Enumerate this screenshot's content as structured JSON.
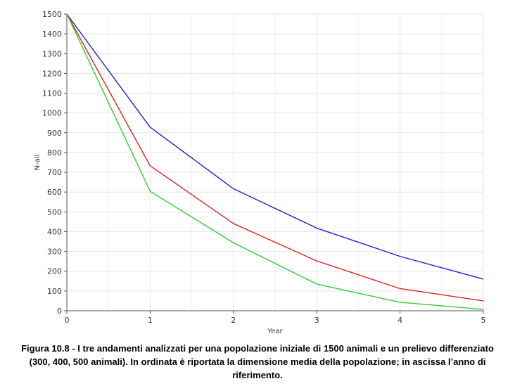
{
  "caption": "Figura 10.8 - I tre andamenti analizzati per una popolazione iniziale di 1500 animali e un prelievo differenziato (300, 400, 500 animali). In ordinata è riportata la dimensione media della popolazione; in ascissa l’anno di riferimento.",
  "chart_data": {
    "type": "line",
    "title": "",
    "xlabel": "Year",
    "ylabel": "N-all",
    "x": [
      0,
      1,
      2,
      3,
      4,
      5
    ],
    "xlim": [
      0,
      5
    ],
    "ylim": [
      0,
      1500
    ],
    "x_ticks": [
      "0",
      "1",
      "2",
      "3",
      "4",
      "5"
    ],
    "y_ticks": [
      "0",
      "100",
      "200",
      "300",
      "400",
      "500",
      "600",
      "700",
      "800",
      "900",
      "1000",
      "1100",
      "1200",
      "1300",
      "1400",
      "1500"
    ],
    "grid": true,
    "series": [
      {
        "color": "#1f1fcc",
        "values": [
          1500,
          928,
          617,
          418,
          275,
          160
        ]
      },
      {
        "color": "#dd2222",
        "values": [
          1500,
          733,
          441,
          252,
          112,
          50
        ]
      },
      {
        "color": "#33cc33",
        "values": [
          1500,
          604,
          344,
          135,
          43,
          7
        ]
      }
    ]
  }
}
